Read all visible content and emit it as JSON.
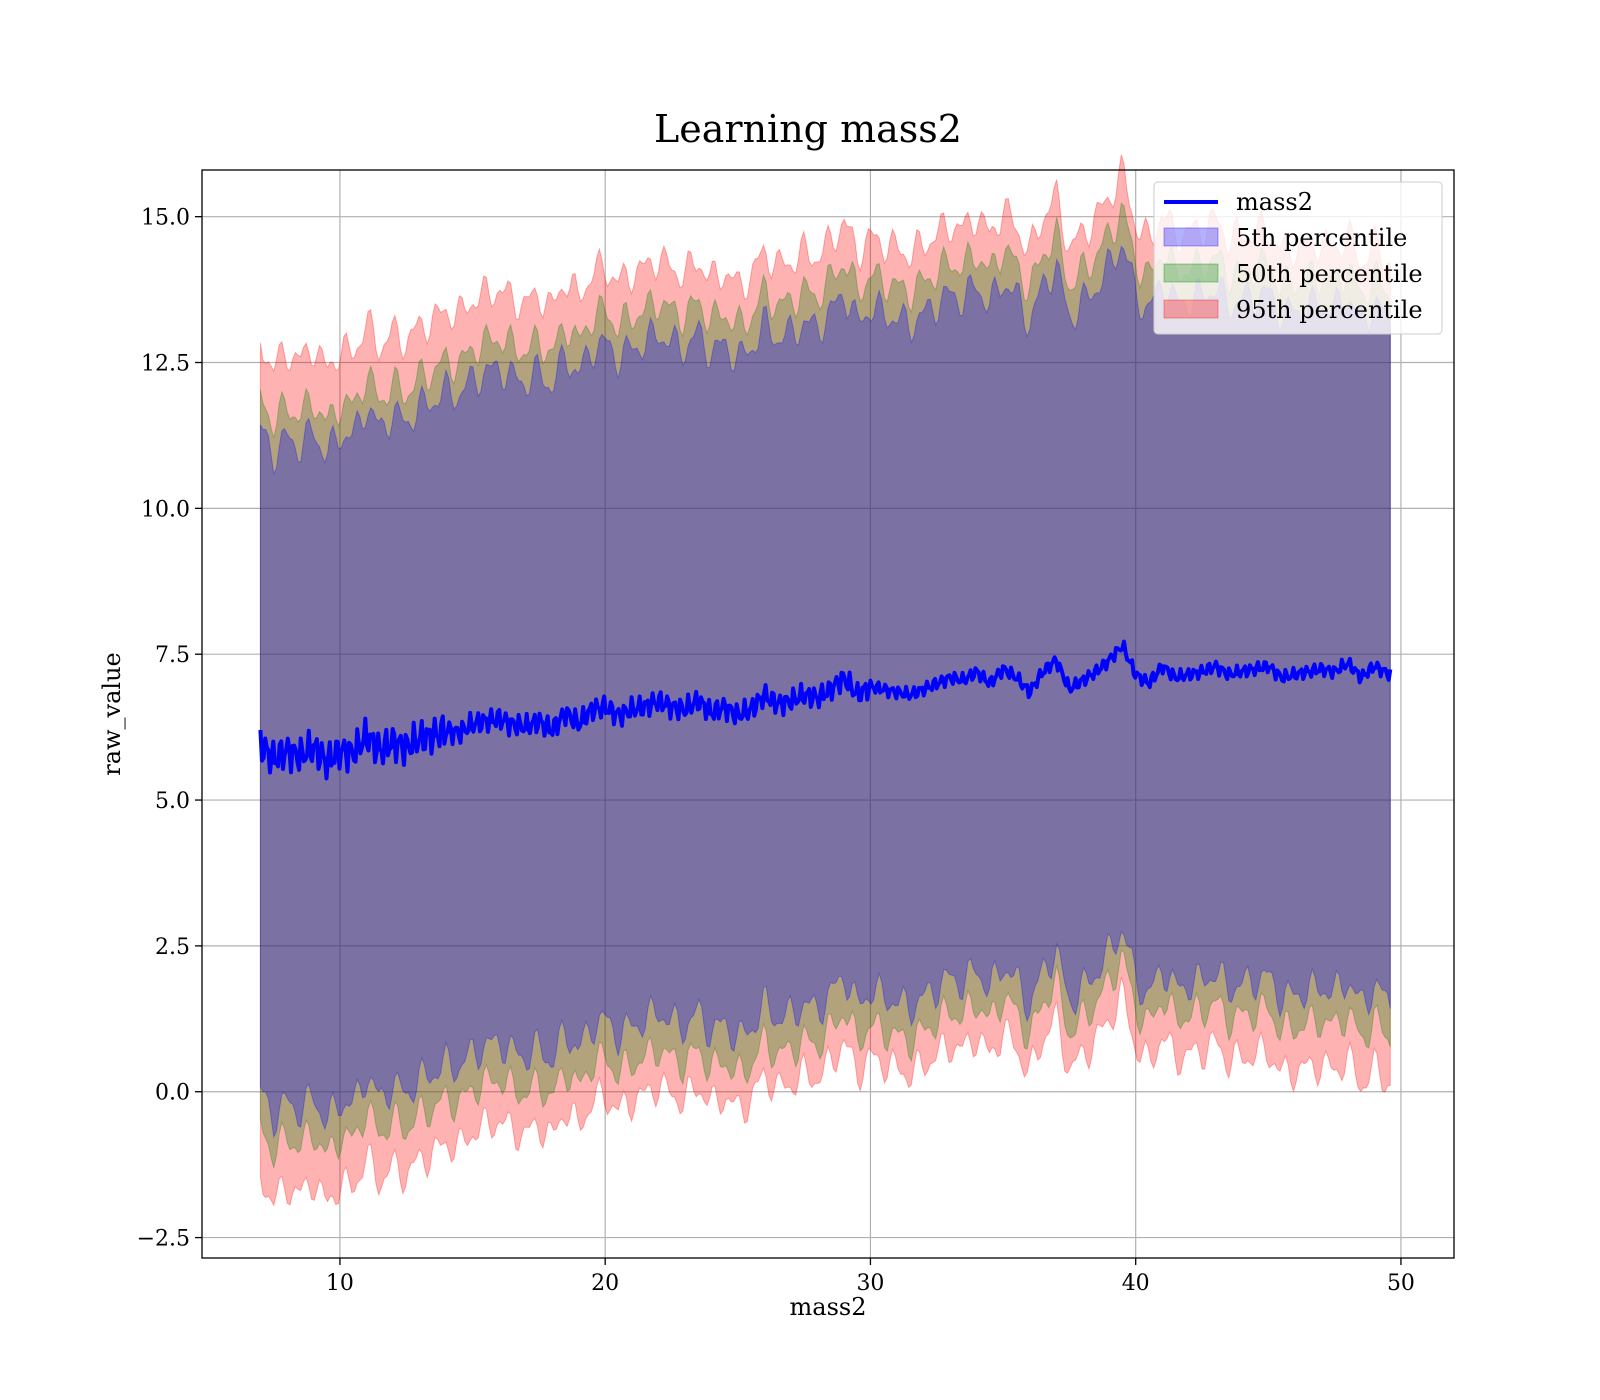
{
  "chart_data": {
    "type": "area",
    "title": "Learning mass2",
    "xlabel": "mass2",
    "ylabel": "raw_value",
    "xlim": [
      4.8,
      52.0
    ],
    "ylim": [
      -2.85,
      15.8
    ],
    "x_ticks": [
      10,
      20,
      30,
      40,
      50
    ],
    "x_tick_labels": [
      "10",
      "20",
      "30",
      "40",
      "50"
    ],
    "y_ticks": [
      -2.5,
      0.0,
      2.5,
      5.0,
      7.5,
      10.0,
      12.5,
      15.0
    ],
    "y_tick_labels": [
      "−2.5",
      "0.0",
      "2.5",
      "5.0",
      "7.5",
      "10.0",
      "12.5",
      "15.0"
    ],
    "grid": true,
    "legend_position": "top-right",
    "colors": {
      "line": "#0000ff",
      "p5": "#0000ff",
      "p50": "#008000",
      "p95": "#ff0000"
    },
    "line_series": {
      "name": "mass2",
      "x": [
        7.0,
        7.5,
        8.0,
        8.5,
        9.0,
        9.5,
        10.0,
        10.5,
        11.0,
        11.5,
        12.0,
        12.5,
        13.0,
        13.5,
        14.0,
        14.5,
        15.0,
        15.5,
        16.0,
        16.5,
        17.0,
        17.5,
        18.0,
        18.5,
        19.0,
        19.5,
        20.0,
        20.5,
        21.0,
        21.5,
        22.0,
        22.5,
        23.0,
        23.5,
        24.0,
        24.5,
        25.0,
        25.5,
        26.0,
        26.5,
        27.0,
        27.5,
        28.0,
        28.5,
        29.0,
        29.5,
        30.0,
        30.5,
        31.0,
        31.5,
        32.0,
        32.5,
        33.0,
        33.5,
        34.0,
        34.5,
        35.0,
        35.5,
        36.0,
        36.5,
        37.0,
        37.5,
        38.0,
        38.5,
        39.0,
        39.5,
        40.0,
        40.5,
        41.0,
        41.5,
        42.0,
        42.5,
        43.0,
        43.5,
        44.0,
        44.5,
        45.0,
        45.5,
        46.0,
        46.5,
        47.0,
        47.5,
        48.0,
        48.5,
        49.0,
        49.6
      ],
      "values": [
        5.95,
        5.7,
        5.85,
        5.75,
        5.9,
        5.65,
        5.85,
        5.8,
        6.1,
        5.85,
        6.0,
        5.9,
        6.05,
        6.1,
        6.2,
        6.15,
        6.3,
        6.35,
        6.4,
        6.3,
        6.25,
        6.35,
        6.2,
        6.5,
        6.3,
        6.55,
        6.6,
        6.45,
        6.55,
        6.6,
        6.7,
        6.6,
        6.55,
        6.7,
        6.5,
        6.6,
        6.45,
        6.55,
        6.8,
        6.65,
        6.7,
        6.8,
        6.75,
        6.9,
        7.1,
        6.8,
        6.95,
        6.9,
        6.85,
        6.8,
        6.9,
        7.0,
        7.1,
        7.05,
        7.2,
        7.0,
        7.25,
        7.1,
        6.85,
        7.2,
        7.4,
        6.9,
        7.05,
        7.2,
        7.4,
        7.65,
        7.15,
        7.0,
        7.3,
        7.1,
        7.15,
        7.2,
        7.3,
        7.15,
        7.2,
        7.25,
        7.3,
        7.1,
        7.15,
        7.2,
        7.25,
        7.2,
        7.35,
        7.1,
        7.3,
        7.15
      ]
    },
    "bands": [
      {
        "name": "5th percentile",
        "x": [
          7.0,
          12.0,
          20.0,
          30.0,
          40.0,
          49.6
        ],
        "lower": [
          0.0,
          0.3,
          0.75,
          1.15,
          1.5,
          1.6
        ],
        "upper": [
          11.35,
          11.8,
          12.35,
          12.85,
          13.25,
          13.3
        ]
      },
      {
        "name": "50th percentile",
        "x": [
          7.0,
          12.0,
          20.0,
          30.0,
          40.0,
          49.6
        ],
        "lower": [
          -0.6,
          -0.3,
          0.1,
          0.55,
          1.0,
          1.0
        ],
        "upper": [
          11.9,
          12.3,
          12.9,
          13.4,
          13.8,
          13.75
        ]
      },
      {
        "name": "95th percentile",
        "x": [
          7.0,
          12.0,
          20.0,
          30.0,
          40.0,
          49.6
        ],
        "lower": [
          -1.45,
          -1.1,
          -0.55,
          0.0,
          0.35,
          0.2
        ],
        "upper": [
          12.85,
          13.2,
          13.65,
          14.05,
          14.45,
          14.3
        ]
      }
    ],
    "legend": [
      "mass2",
      "5th percentile",
      "50th percentile",
      "95th percentile"
    ]
  }
}
